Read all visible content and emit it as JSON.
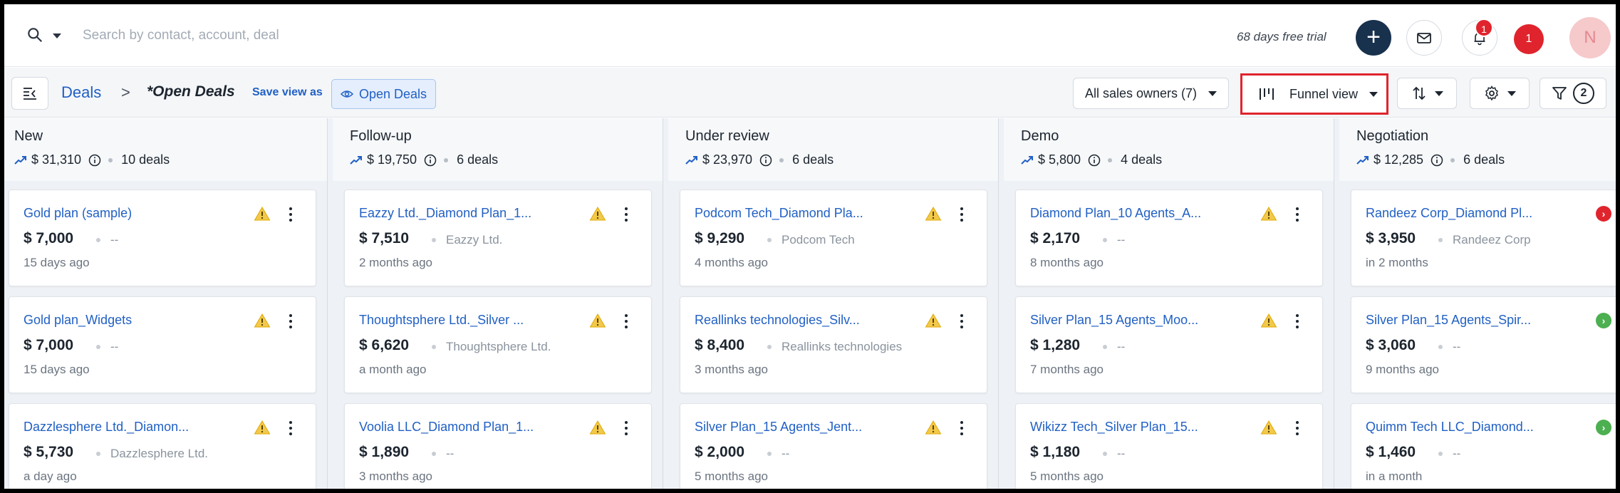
{
  "topbar": {
    "search_placeholder": "Search by contact, account, deal",
    "trial_text": "68 days free trial",
    "add_label": "+",
    "bell_badge": "1",
    "notification_badge": "1",
    "avatar_initial": "N"
  },
  "viewbar": {
    "breadcrumb_root": "Deals",
    "breadcrumb_separator": ">",
    "breadcrumb_current": "*Open Deals",
    "save_view_as": "Save view as",
    "open_deals_chip": "Open Deals",
    "sales_owners": "All sales owners (7)",
    "view_mode": "Funnel view",
    "filter_count": "2"
  },
  "colors": {
    "accent": "#2160c4",
    "danger": "#e0242d",
    "success": "#4caf50",
    "warning": "#f2c94c",
    "navy": "#18314d"
  },
  "columns": [
    {
      "title": "New",
      "amount": "$ 31,310",
      "count": "10 deals",
      "cards": [
        {
          "name": "Gold plan (sample)",
          "amount": "$ 7,000",
          "account": "--",
          "time": "15 days ago",
          "status": "warning"
        },
        {
          "name": "Gold plan_Widgets",
          "amount": "$ 7,000",
          "account": "--",
          "time": "15 days ago",
          "status": "warning"
        },
        {
          "name": "Dazzlesphere Ltd._Diamon...",
          "amount": "$ 5,730",
          "account": "Dazzlesphere Ltd.",
          "time": "a day ago",
          "status": "warning"
        }
      ]
    },
    {
      "title": "Follow-up",
      "amount": "$ 19,750",
      "count": "6 deals",
      "cards": [
        {
          "name": "Eazzy Ltd._Diamond Plan_1...",
          "amount": "$ 7,510",
          "account": "Eazzy Ltd.",
          "time": "2 months ago",
          "status": "warning"
        },
        {
          "name": "Thoughtsphere Ltd._Silver ...",
          "amount": "$ 6,620",
          "account": "Thoughtsphere Ltd.",
          "time": "a month ago",
          "status": "warning"
        },
        {
          "name": "Voolia LLC_Diamond Plan_1...",
          "amount": "$ 1,890",
          "account": "--",
          "time": "3 months ago",
          "status": "warning"
        }
      ]
    },
    {
      "title": "Under review",
      "amount": "$ 23,970",
      "count": "6 deals",
      "cards": [
        {
          "name": "Podcom Tech_Diamond Pla...",
          "amount": "$ 9,290",
          "account": "Podcom Tech",
          "time": "4 months ago",
          "status": "warning"
        },
        {
          "name": "Reallinks technologies_Silv...",
          "amount": "$ 8,400",
          "account": "Reallinks technologies",
          "time": "3 months ago",
          "status": "warning"
        },
        {
          "name": "Silver Plan_15 Agents_Jent...",
          "amount": "$ 2,000",
          "account": "--",
          "time": "5 months ago",
          "status": "warning"
        }
      ]
    },
    {
      "title": "Demo",
      "amount": "$ 5,800",
      "count": "4 deals",
      "cards": [
        {
          "name": "Diamond Plan_10 Agents_A...",
          "amount": "$ 2,170",
          "account": "--",
          "time": "8 months ago",
          "status": "warning"
        },
        {
          "name": "Silver Plan_15 Agents_Moo...",
          "amount": "$ 1,280",
          "account": "--",
          "time": "7 months ago",
          "status": "warning"
        },
        {
          "name": "Wikizz Tech_Silver Plan_15...",
          "amount": "$ 1,180",
          "account": "--",
          "time": "5 months ago",
          "status": "warning"
        }
      ]
    },
    {
      "title": "Negotiation",
      "amount": "$ 12,285",
      "count": "6 deals",
      "cards": [
        {
          "name": "Randeez Corp_Diamond Pl...",
          "amount": "$ 3,950",
          "account": "Randeez Corp",
          "time": "in 2 months",
          "status": "overdue"
        },
        {
          "name": "Silver Plan_15 Agents_Spir...",
          "amount": "$ 3,060",
          "account": "--",
          "time": "9 months ago",
          "status": "ok"
        },
        {
          "name": "Quimm Tech LLC_Diamond...",
          "amount": "$ 1,460",
          "account": "--",
          "time": "in a month",
          "status": "ok"
        }
      ]
    }
  ]
}
